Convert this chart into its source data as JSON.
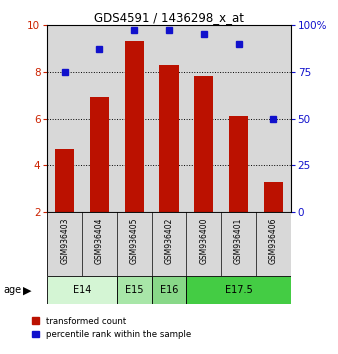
{
  "title": "GDS4591 / 1436298_x_at",
  "samples": [
    "GSM936403",
    "GSM936404",
    "GSM936405",
    "GSM936402",
    "GSM936400",
    "GSM936401",
    "GSM936406"
  ],
  "red_values": [
    4.7,
    6.9,
    9.3,
    8.3,
    7.8,
    6.1,
    3.3
  ],
  "blue_values": [
    75,
    87,
    97,
    97,
    95,
    90,
    50
  ],
  "ylim_left": [
    2,
    10
  ],
  "ylim_right": [
    0,
    100
  ],
  "yticks_left": [
    2,
    4,
    6,
    8,
    10
  ],
  "yticks_right": [
    0,
    25,
    50,
    75,
    100
  ],
  "age_groups": [
    {
      "label": "E14",
      "start": 0,
      "end": 1,
      "color": "#d4f5d4"
    },
    {
      "label": "E15",
      "start": 2,
      "end": 2,
      "color": "#a8e6a8"
    },
    {
      "label": "E16",
      "start": 3,
      "end": 3,
      "color": "#88d888"
    },
    {
      "label": "E17.5",
      "start": 4,
      "end": 6,
      "color": "#44cc44"
    }
  ],
  "bar_color": "#bb1100",
  "dot_color": "#1111cc",
  "plot_bg_color": "#d8d8d8",
  "age_row_bg": "#d4f5d4",
  "label_color_left": "#cc2200",
  "label_color_right": "#1111cc",
  "bar_width": 0.55
}
